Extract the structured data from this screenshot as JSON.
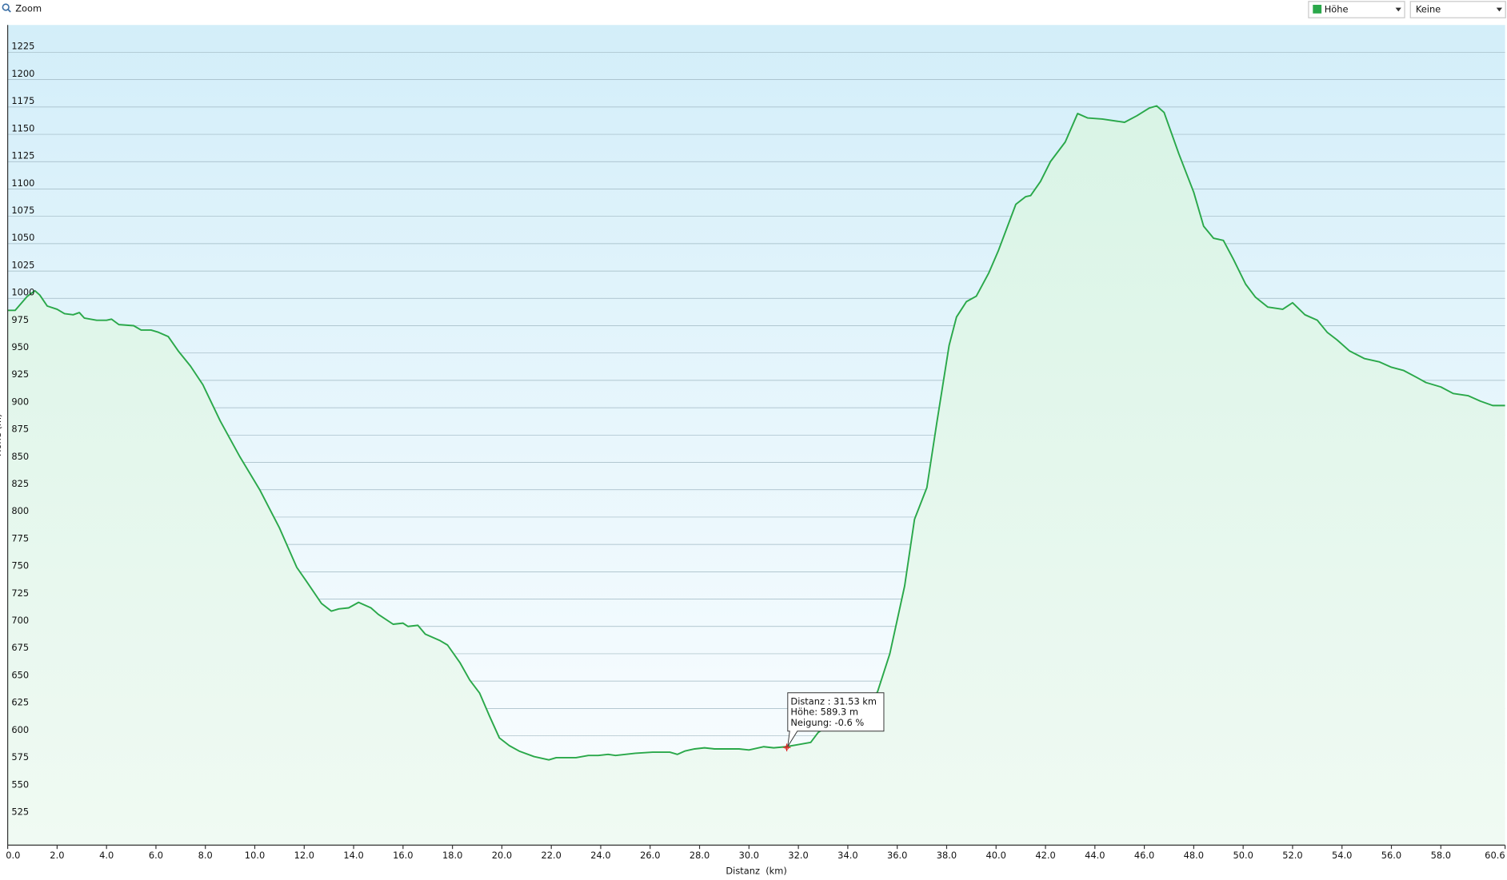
{
  "toolbar": {
    "zoom": "Zoom",
    "series_select": "Höhe",
    "compare_select": "Keine"
  },
  "chart_data": {
    "type": "area",
    "x_label": "Distanz  (km)",
    "y_label": "Höhe (m)",
    "x": [
      0,
      0.3,
      0.8,
      1.1,
      1.3,
      1.6,
      2.0,
      2.3,
      2.65,
      2.9,
      3.1,
      3.6,
      4.0,
      4.2,
      4.5,
      5.1,
      5.4,
      5.8,
      6.1,
      6.5,
      6.9,
      7.4,
      7.9,
      8.6,
      9.4,
      10.2,
      11.0,
      11.7,
      12.1,
      12.7,
      13.1,
      13.4,
      13.8,
      14.2,
      14.7,
      15.0,
      15.6,
      16.0,
      16.2,
      16.6,
      16.9,
      17.5,
      17.8,
      18.3,
      18.7,
      19.1,
      19.5,
      19.9,
      20.3,
      20.7,
      21.3,
      21.9,
      22.2,
      23.0,
      23.5,
      23.9,
      24.3,
      24.6,
      25.4,
      26.1,
      26.8,
      27.1,
      27.4,
      27.8,
      28.2,
      28.6,
      29.1,
      29.6,
      30.0,
      30.6,
      31.0,
      31.5,
      32.0,
      32.5,
      32.8,
      33.4,
      33.9,
      34.7,
      35.2,
      35.7,
      36.3,
      36.7,
      37.2,
      37.6,
      38.1,
      38.4,
      38.8,
      39.2,
      39.7,
      40.1,
      40.8,
      41.2,
      41.4,
      41.8,
      42.2,
      42.8,
      43.3,
      43.7,
      44.3,
      45.2,
      45.7,
      46.2,
      46.5,
      46.8,
      47.4,
      48.0,
      48.4,
      48.8,
      49.2,
      49.6,
      50.1,
      50.5,
      51.0,
      51.6,
      52.0,
      52.5,
      53.0,
      53.4,
      53.8,
      54.3,
      54.9,
      55.5,
      56.0,
      56.5,
      57.0,
      57.4,
      58.0,
      58.5,
      59.1,
      59.6,
      60.1,
      60.6
    ],
    "series": [
      {
        "name": "Höhe",
        "color": "#2aa84a",
        "values": [
          989,
          989,
          1002,
          1007,
          1003,
          993,
          990,
          986,
          985,
          987,
          982,
          980,
          980,
          981,
          976,
          975,
          971,
          971,
          969,
          965,
          952,
          938,
          921,
          888,
          855,
          825,
          790,
          754,
          741,
          721,
          714,
          716,
          717,
          722,
          717,
          711,
          702,
          703,
          700,
          701,
          693,
          687,
          683,
          667,
          651,
          639,
          618,
          598,
          591,
          586,
          581,
          578,
          580,
          580,
          582,
          582,
          583,
          582,
          584,
          585,
          585,
          583,
          586,
          588,
          589,
          588,
          588,
          588,
          587,
          590,
          589,
          590,
          592,
          594,
          603,
          612,
          623,
          629,
          640,
          675,
          737,
          798,
          827,
          886,
          957,
          983,
          997,
          1002,
          1023,
          1044,
          1086,
          1093,
          1094,
          1107,
          1125,
          1143,
          1169,
          1165,
          1164,
          1161,
          1167,
          1174,
          1176,
          1170,
          1132,
          1097,
          1066,
          1055,
          1053,
          1036,
          1013,
          1001,
          992,
          990,
          996,
          985,
          980,
          969,
          962,
          952,
          945,
          942,
          937,
          934,
          928,
          923,
          919,
          913,
          911,
          906,
          902,
          902
        ]
      }
    ],
    "xlim": [
      0,
      60.6
    ],
    "ylim": [
      500,
      1250
    ],
    "xticks": [
      {
        "value": 0,
        "label": "0.0"
      },
      {
        "value": 2,
        "label": "2.0"
      },
      {
        "value": 4,
        "label": "4.0"
      },
      {
        "value": 6,
        "label": "6.0"
      },
      {
        "value": 8,
        "label": "8.0"
      },
      {
        "value": 10,
        "label": "10.0"
      },
      {
        "value": 12,
        "label": "12.0"
      },
      {
        "value": 14,
        "label": "14.0"
      },
      {
        "value": 16,
        "label": "16.0"
      },
      {
        "value": 18,
        "label": "18.0"
      },
      {
        "value": 20,
        "label": "20.0"
      },
      {
        "value": 22,
        "label": "22.0"
      },
      {
        "value": 24,
        "label": "24.0"
      },
      {
        "value": 26,
        "label": "26.0"
      },
      {
        "value": 28,
        "label": "28.0"
      },
      {
        "value": 30,
        "label": "30.0"
      },
      {
        "value": 32,
        "label": "32.0"
      },
      {
        "value": 34,
        "label": "34.0"
      },
      {
        "value": 36,
        "label": "36.0"
      },
      {
        "value": 38,
        "label": "38.0"
      },
      {
        "value": 40,
        "label": "40.0"
      },
      {
        "value": 42,
        "label": "42.0"
      },
      {
        "value": 44,
        "label": "44.0"
      },
      {
        "value": 46,
        "label": "46.0"
      },
      {
        "value": 48,
        "label": "48.0"
      },
      {
        "value": 50,
        "label": "50.0"
      },
      {
        "value": 52,
        "label": "52.0"
      },
      {
        "value": 54,
        "label": "54.0"
      },
      {
        "value": 56,
        "label": "56.0"
      },
      {
        "value": 58,
        "label": "58.0"
      },
      {
        "value": 60.6,
        "label": "60.6"
      }
    ],
    "yticks": [
      525,
      550,
      575,
      600,
      625,
      650,
      675,
      700,
      725,
      750,
      775,
      800,
      825,
      850,
      875,
      900,
      925,
      950,
      975,
      1000,
      1025,
      1050,
      1075,
      1100,
      1125,
      1150,
      1175,
      1200,
      1225
    ],
    "grid": true,
    "tooltip": [
      {
        "label": "Distanz :",
        "value": 31.53,
        "unit": "km"
      },
      {
        "label": "Höhe:",
        "value": 589.3,
        "unit": "m"
      },
      {
        "label": "Neigung:",
        "value": -0.6,
        "unit": "%"
      }
    ]
  }
}
